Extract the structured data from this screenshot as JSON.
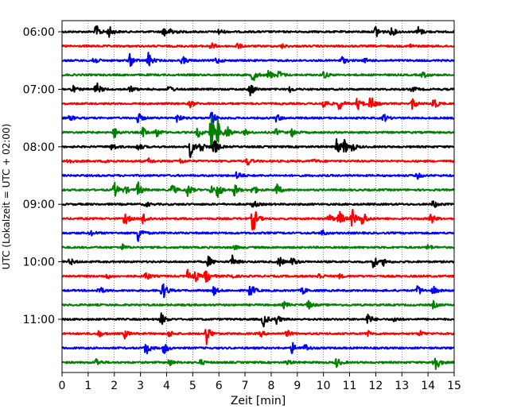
{
  "chart_data": {
    "type": "line",
    "xlabel": "Zeit  [min]",
    "ylabel": "UTC (Lokalzeit = UTC + 02:00)",
    "xlim": [
      0,
      15
    ],
    "x_ticks": [
      0,
      1,
      2,
      3,
      4,
      5,
      6,
      7,
      8,
      9,
      10,
      11,
      12,
      13,
      14,
      15
    ],
    "y_tick_labels": [
      "06:00",
      "07:00",
      "08:00",
      "09:00",
      "10:00",
      "11:00"
    ],
    "grid": "vertical dotted",
    "colors": [
      "#000000",
      "#ff0000",
      "#0000ff",
      "#008000"
    ],
    "rows": [
      {
        "color": "#000000",
        "events": [
          [
            1.3,
            1.0
          ],
          [
            1.8,
            0.8
          ],
          [
            3.9,
            0.9
          ],
          [
            4.2,
            0.6
          ],
          [
            6.0,
            0.4
          ],
          [
            12.0,
            1.0
          ],
          [
            12.6,
            0.7
          ],
          [
            13.6,
            0.9
          ]
        ]
      },
      {
        "color": "#ff0000",
        "events": [
          [
            5.7,
            0.5
          ],
          [
            6.7,
            0.4
          ],
          [
            8.4,
            0.3
          ],
          [
            13.3,
            0.3
          ]
        ]
      },
      {
        "color": "#0000ff",
        "events": [
          [
            1.2,
            0.6
          ],
          [
            2.6,
            0.9
          ],
          [
            3.3,
            1.1
          ],
          [
            4.6,
            0.6
          ],
          [
            5.9,
            0.5
          ],
          [
            10.7,
            0.6
          ],
          [
            11.6,
            0.3
          ]
        ]
      },
      {
        "color": "#008000",
        "events": [
          [
            7.3,
            1.0
          ],
          [
            7.9,
            0.8
          ],
          [
            8.3,
            0.6
          ],
          [
            10.0,
            0.6
          ],
          [
            13.8,
            0.5
          ]
        ]
      },
      {
        "color": "#000000",
        "events": [
          [
            0.4,
            0.5
          ],
          [
            1.3,
            1.1
          ],
          [
            2.6,
            0.5
          ],
          [
            4.1,
            0.6
          ],
          [
            7.2,
            1.0
          ],
          [
            8.7,
            0.4
          ],
          [
            13.4,
            0.4
          ]
        ]
      },
      {
        "color": "#ff0000",
        "events": [
          [
            4.9,
            0.6
          ],
          [
            10.0,
            0.8
          ],
          [
            10.6,
            0.9
          ],
          [
            11.3,
            1.0
          ],
          [
            11.8,
            1.2
          ],
          [
            13.4,
            0.8
          ],
          [
            14.2,
            1.0
          ]
        ]
      },
      {
        "color": "#0000ff",
        "events": [
          [
            0.3,
            0.4
          ],
          [
            2.9,
            0.8
          ],
          [
            4.4,
            0.6
          ],
          [
            5.7,
            1.2
          ],
          [
            8.2,
            0.6
          ],
          [
            12.3,
            0.6
          ]
        ]
      },
      {
        "color": "#008000",
        "events": [
          [
            2.0,
            0.8
          ],
          [
            3.1,
            0.7
          ],
          [
            3.6,
            0.8
          ],
          [
            5.2,
            0.8
          ],
          [
            5.7,
            2.5
          ],
          [
            5.95,
            1.6
          ],
          [
            6.3,
            1.0
          ],
          [
            7.0,
            0.4
          ],
          [
            8.2,
            0.5
          ],
          [
            8.8,
            0.6
          ]
        ]
      },
      {
        "color": "#000000",
        "events": [
          [
            1.9,
            0.6
          ],
          [
            2.9,
            0.6
          ],
          [
            4.9,
            1.5
          ],
          [
            5.3,
            0.9
          ],
          [
            5.8,
            1.5
          ],
          [
            10.5,
            1.3
          ],
          [
            10.8,
            1.0
          ],
          [
            11.1,
            0.6
          ]
        ]
      },
      {
        "color": "#ff0000",
        "events": [
          [
            0.2,
            0.5
          ],
          [
            1.7,
            0.4
          ],
          [
            3.3,
            0.4
          ],
          [
            4.5,
            0.4
          ],
          [
            7.1,
            0.6
          ],
          [
            9.6,
            0.3
          ]
        ]
      },
      {
        "color": "#0000ff",
        "events": [
          [
            6.7,
            0.7
          ],
          [
            13.6,
            0.4
          ]
        ]
      },
      {
        "color": "#008000",
        "events": [
          [
            2.0,
            1.1
          ],
          [
            2.4,
            0.6
          ],
          [
            2.9,
            1.1
          ],
          [
            4.2,
            0.9
          ],
          [
            4.8,
            1.0
          ],
          [
            5.7,
            0.5
          ],
          [
            5.95,
            1.2
          ],
          [
            6.6,
            0.9
          ],
          [
            7.3,
            0.8
          ],
          [
            8.2,
            1.0
          ]
        ]
      },
      {
        "color": "#000000",
        "events": [
          [
            3.2,
            0.4
          ],
          [
            7.3,
            0.6
          ],
          [
            14.2,
            0.6
          ]
        ]
      },
      {
        "color": "#ff0000",
        "events": [
          [
            2.4,
            1.0
          ],
          [
            3.1,
            0.9
          ],
          [
            7.3,
            2.2
          ],
          [
            10.2,
            0.7
          ],
          [
            10.6,
            1.3
          ],
          [
            11.1,
            1.4
          ],
          [
            11.5,
            1.2
          ],
          [
            14.1,
            0.9
          ]
        ]
      },
      {
        "color": "#0000ff",
        "events": [
          [
            1.1,
            0.4
          ],
          [
            2.9,
            1.4
          ],
          [
            9.9,
            0.6
          ]
        ]
      },
      {
        "color": "#008000",
        "events": [
          [
            2.3,
            0.4
          ],
          [
            6.6,
            0.3
          ],
          [
            14.0,
            0.4
          ]
        ]
      },
      {
        "color": "#000000",
        "events": [
          [
            0.3,
            0.5
          ],
          [
            5.6,
            0.8
          ],
          [
            6.5,
            0.9
          ],
          [
            8.3,
            0.8
          ],
          [
            8.8,
            0.7
          ],
          [
            11.9,
            0.9
          ],
          [
            12.3,
            0.5
          ]
        ]
      },
      {
        "color": "#ff0000",
        "events": [
          [
            1.7,
            0.4
          ],
          [
            3.2,
            0.7
          ],
          [
            4.8,
            0.8
          ],
          [
            5.1,
            0.7
          ],
          [
            5.5,
            1.2
          ],
          [
            6.4,
            0.5
          ],
          [
            9.8,
            0.5
          ],
          [
            10.6,
            0.3
          ]
        ]
      },
      {
        "color": "#0000ff",
        "events": [
          [
            1.4,
            0.7
          ],
          [
            3.8,
            0.6
          ],
          [
            3.9,
            0.8
          ],
          [
            5.8,
            0.6
          ],
          [
            7.2,
            1.1
          ],
          [
            9.2,
            0.5
          ],
          [
            13.6,
            0.8
          ],
          [
            14.2,
            0.6
          ]
        ]
      },
      {
        "color": "#008000",
        "events": [
          [
            8.5,
            0.5
          ],
          [
            9.4,
            0.7
          ],
          [
            14.2,
            0.5
          ]
        ]
      },
      {
        "color": "#000000",
        "events": [
          [
            3.8,
            0.9
          ],
          [
            7.7,
            1.1
          ],
          [
            8.2,
            0.7
          ],
          [
            11.7,
            0.9
          ],
          [
            12.7,
            0.4
          ]
        ]
      },
      {
        "color": "#ff0000",
        "events": [
          [
            1.4,
            0.5
          ],
          [
            2.4,
            0.6
          ],
          [
            4.1,
            0.5
          ],
          [
            5.5,
            1.8
          ],
          [
            7.6,
            0.4
          ],
          [
            8.6,
            0.5
          ],
          [
            11.7,
            0.4
          ],
          [
            13.7,
            0.4
          ]
        ]
      },
      {
        "color": "#0000ff",
        "events": [
          [
            3.2,
            1.1
          ],
          [
            3.9,
            0.9
          ],
          [
            8.8,
            0.8
          ],
          [
            9.3,
            0.6
          ]
        ]
      },
      {
        "color": "#008000",
        "events": [
          [
            1.3,
            0.6
          ],
          [
            4.1,
            0.5
          ],
          [
            5.3,
            0.4
          ],
          [
            8.6,
            0.4
          ],
          [
            10.5,
            0.7
          ],
          [
            14.2,
            1.0
          ],
          [
            14.3,
            0.7
          ]
        ]
      }
    ]
  }
}
